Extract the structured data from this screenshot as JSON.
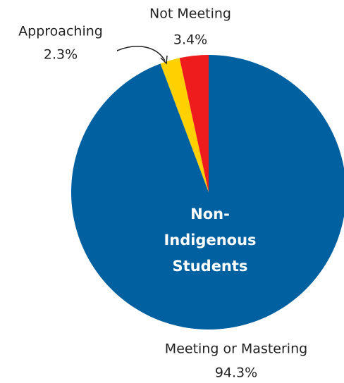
{
  "chart_data": {
    "type": "pie",
    "title": [
      "Non-",
      "Indigenous",
      "Students"
    ],
    "categories": [
      "Meeting or Mastering",
      "Approaching",
      "Not Meeting"
    ],
    "values": [
      94.3,
      2.3,
      3.4
    ],
    "value_labels": [
      "94.3%",
      "2.3%",
      "3.4%"
    ],
    "colors": [
      "#0060a0",
      "#ffd100",
      "#ee1c1c"
    ]
  }
}
